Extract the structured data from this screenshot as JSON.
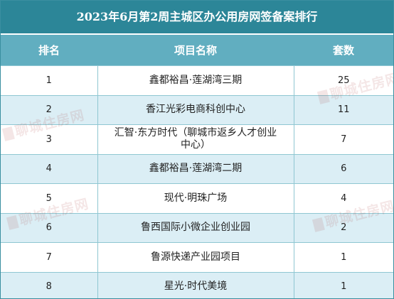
{
  "title": "2023年6月第2周主城区办公用房网签备案排行",
  "headers": {
    "rank": "排名",
    "project": "项目名称",
    "count": "套数"
  },
  "rows": [
    {
      "rank": "1",
      "name": "鑫都裕昌·莲湖湾三期",
      "count": "25"
    },
    {
      "rank": "2",
      "name": "香江光彩电商科创中心",
      "count": "11"
    },
    {
      "rank": "3",
      "name_line1": "汇智·东方时代（聊城市返乡人才创业",
      "name_line2": "中心）",
      "count": "7"
    },
    {
      "rank": "4",
      "name": "鑫都裕昌·莲湖湾二期",
      "count": "6"
    },
    {
      "rank": "5",
      "name": "现代·明珠广场",
      "count": "4"
    },
    {
      "rank": "6",
      "name": "鲁西国际小微企业创业园",
      "count": "2"
    },
    {
      "rank": "7",
      "name": "鲁源快递产业园项目",
      "count": "1"
    },
    {
      "rank": "8",
      "name": "星光·时代美境",
      "count": "1"
    }
  ],
  "watermark": "聊城住房网"
}
